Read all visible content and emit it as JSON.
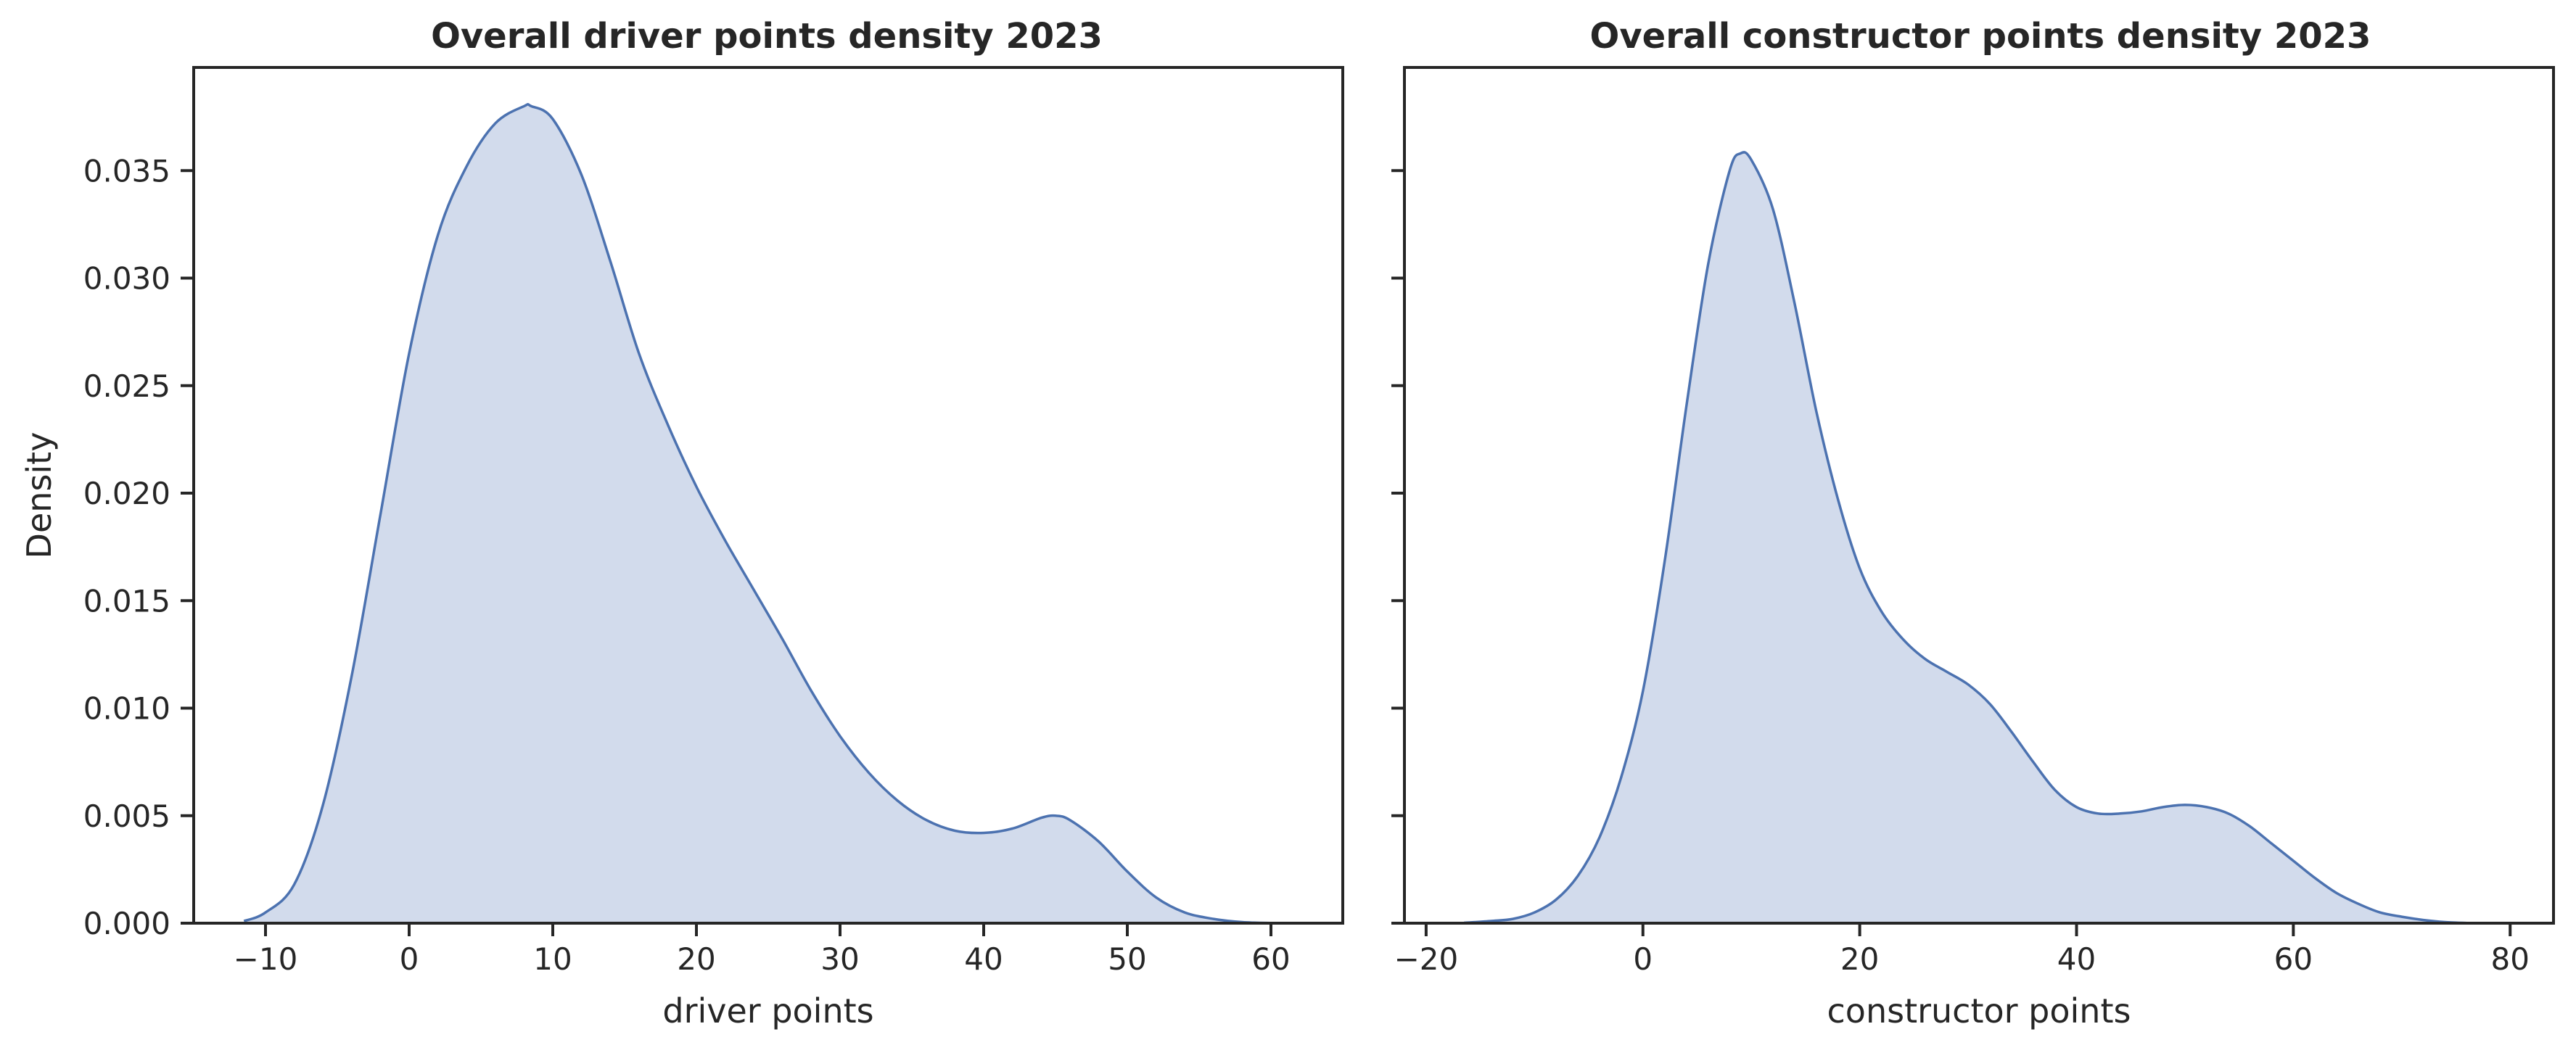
{
  "chart_data": [
    {
      "type": "area",
      "title": "Overall driver points density 2023",
      "xlabel": "driver points",
      "ylabel": "Density",
      "xlim": [
        -15,
        65
      ],
      "ylim": [
        0,
        0.0398
      ],
      "xticks": [
        -10,
        0,
        10,
        20,
        30,
        40,
        50,
        60
      ],
      "xtick_labels": [
        "−10",
        "0",
        "10",
        "20",
        "30",
        "40",
        "50",
        "60"
      ],
      "yticks": [
        0,
        0.005,
        0.01,
        0.015,
        0.02,
        0.025,
        0.03,
        0.035
      ],
      "ytick_labels": [
        "0.000",
        "0.005",
        "0.010",
        "0.015",
        "0.020",
        "0.025",
        "0.030",
        "0.035"
      ],
      "grid": false,
      "series": [
        {
          "x": [
            -11.5,
            -10,
            -8,
            -6,
            -4,
            -2,
            0,
            2,
            4,
            6,
            8,
            8.5,
            10,
            12,
            14,
            16,
            18,
            20,
            22,
            24,
            26,
            28,
            30,
            32,
            34,
            36,
            38,
            40,
            42,
            44,
            45,
            46,
            48,
            50,
            52,
            54,
            56,
            58,
            60,
            62
          ],
          "y": [
            0.0001,
            0.0005,
            0.0018,
            0.0055,
            0.0115,
            0.019,
            0.0265,
            0.032,
            0.0352,
            0.0372,
            0.038,
            0.038,
            0.0374,
            0.0348,
            0.0308,
            0.0265,
            0.0232,
            0.0203,
            0.0178,
            0.0155,
            0.0132,
            0.0108,
            0.0087,
            0.007,
            0.0057,
            0.0048,
            0.0043,
            0.0042,
            0.0044,
            0.0049,
            0.005,
            0.0048,
            0.0038,
            0.0024,
            0.0012,
            0.0005,
            0.0002,
            5e-05,
            1e-05,
            0
          ]
        }
      ]
    },
    {
      "type": "area",
      "title": "Overall constructor points density 2023",
      "xlabel": "constructor points",
      "ylabel": "",
      "xlim": [
        -22,
        84
      ],
      "ylim": [
        0,
        0.0398
      ],
      "xticks": [
        -20,
        0,
        20,
        40,
        60,
        80
      ],
      "xtick_labels": [
        "−20",
        "0",
        "20",
        "40",
        "60",
        "80"
      ],
      "yticks": [
        0,
        0.005,
        0.01,
        0.015,
        0.02,
        0.025,
        0.03,
        0.035
      ],
      "grid": false,
      "series": [
        {
          "x": [
            -16.5,
            -14,
            -12,
            -10,
            -8,
            -6,
            -4,
            -2,
            0,
            2,
            4,
            6,
            8,
            9,
            10,
            12,
            14,
            16,
            18,
            20,
            22,
            24,
            26,
            28,
            30,
            32,
            34,
            36,
            38,
            40,
            42,
            44,
            46,
            48,
            50,
            52,
            54,
            56,
            58,
            60,
            62,
            64,
            66,
            68,
            70,
            72,
            74,
            76
          ],
          "y": [
            2e-05,
            0.0001,
            0.0002,
            0.0005,
            0.0011,
            0.0022,
            0.004,
            0.0068,
            0.0108,
            0.0168,
            0.024,
            0.0306,
            0.035,
            0.0358,
            0.0355,
            0.0332,
            0.0288,
            0.0238,
            0.0197,
            0.0165,
            0.0145,
            0.0132,
            0.0123,
            0.0117,
            0.0111,
            0.0102,
            0.0089,
            0.0075,
            0.0062,
            0.0054,
            0.0051,
            0.0051,
            0.0052,
            0.0054,
            0.0055,
            0.0054,
            0.0051,
            0.0045,
            0.0037,
            0.0029,
            0.0021,
            0.0014,
            0.0009,
            0.0005,
            0.0003,
            0.00015,
            5e-05,
            1e-05
          ]
        }
      ]
    }
  ],
  "colors": {
    "line": "#4c72b0",
    "fill": "#d2dbec",
    "axes": "#262626"
  }
}
